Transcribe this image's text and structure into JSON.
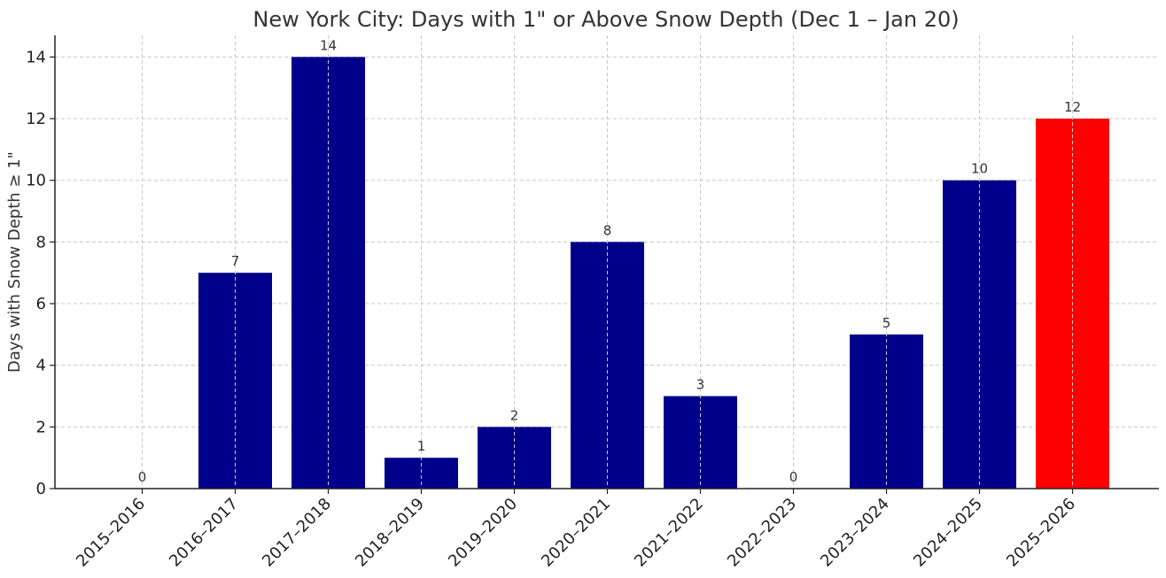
{
  "chart_data": {
    "type": "bar",
    "title": "New York City: Days with 1\" or Above Snow Depth (Dec 1 – Jan 20)",
    "xlabel": "",
    "ylabel": "Days with Snow Depth ≥ 1\"",
    "categories": [
      "2015–2016",
      "2016–2017",
      "2017–2018",
      "2018–2019",
      "2019–2020",
      "2020–2021",
      "2021–2022",
      "2022–2023",
      "2023–2024",
      "2024–2025",
      "2025–2026"
    ],
    "values": [
      0,
      7,
      14,
      1,
      2,
      8,
      3,
      0,
      5,
      10,
      12
    ],
    "value_labels": [
      "0",
      "7",
      "14",
      "1",
      "2",
      "8",
      "3",
      "0",
      "5",
      "10",
      "12"
    ],
    "yticks": [
      0,
      2,
      4,
      6,
      8,
      10,
      12,
      14
    ],
    "ylim": [
      0,
      14.7
    ],
    "grid": true,
    "colors": {
      "default_bar": "#00008b",
      "highlight_bar": "#ff0000"
    },
    "highlight_category": "2025–2026"
  }
}
